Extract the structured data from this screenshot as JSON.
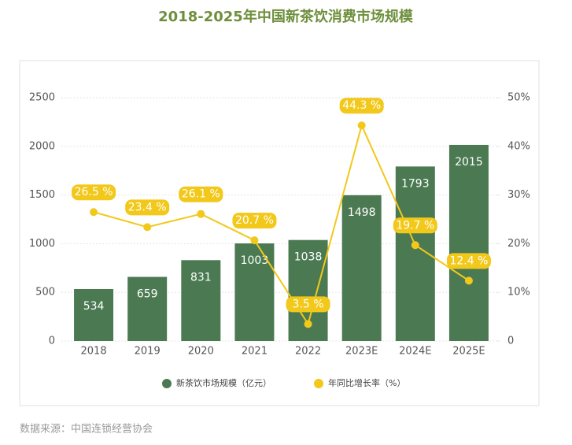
{
  "chart_data": {
    "type": "bar",
    "title": "2018-2025年中国新茶饮消费市场规模",
    "categories": [
      "2018",
      "2019",
      "2020",
      "2021",
      "2022",
      "2023E",
      "2024E",
      "2025E"
    ],
    "series": [
      {
        "name": "新茶饮市场规模（亿元）",
        "type": "bar",
        "color": "#4b7a52",
        "values": [
          534,
          659,
          831,
          1003,
          1038,
          1498,
          1793,
          2015
        ]
      },
      {
        "name": "年同比增长率（%）",
        "type": "line",
        "axis": "y2",
        "color": "#f2c81a",
        "values": [
          26.5,
          23.4,
          26.1,
          20.7,
          3.5,
          44.3,
          19.7,
          12.4
        ],
        "value_labels": [
          "26.5 %",
          "23.4 %",
          "26.1 %",
          "20.7 %",
          "3.5 %",
          "44.3 %",
          "19.7 %",
          "12.4 %"
        ]
      }
    ],
    "ylim": [
      0,
      2500
    ],
    "yticks": [
      0,
      500,
      1000,
      1500,
      2000,
      2500
    ],
    "y2lim": [
      0,
      50
    ],
    "y2ticks": [
      0,
      {
        "value": 10,
        "label": "10%"
      },
      {
        "value": 20,
        "label": "20%"
      },
      {
        "value": 30,
        "label": "30%"
      },
      {
        "value": 40,
        "label": "40%"
      },
      {
        "value": 50,
        "label": "50%"
      }
    ],
    "grid": true,
    "source": "数据来源：中国连锁经营协会"
  }
}
